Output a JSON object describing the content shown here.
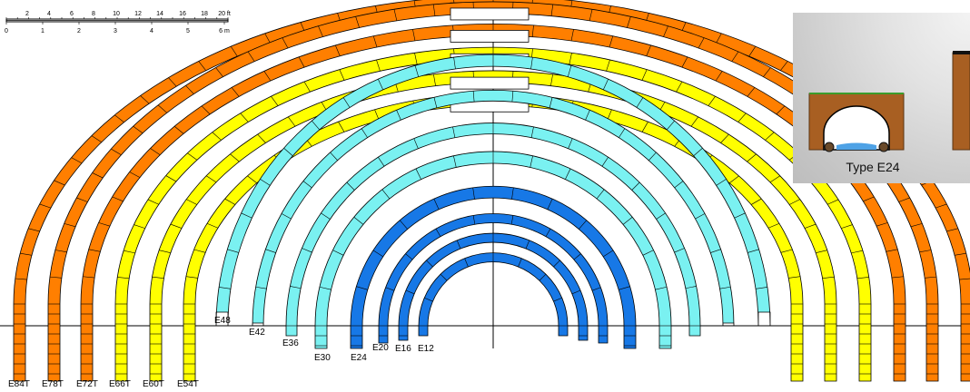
{
  "scale_bar": {
    "feet_ticks": [
      "2",
      "4",
      "6",
      "8",
      "10",
      "12",
      "14",
      "16",
      "18",
      "20 ft"
    ],
    "meter_ticks": [
      "0",
      "1",
      "2",
      "3",
      "4",
      "5",
      "6 m"
    ]
  },
  "labels": {
    "E12": "E12",
    "E16": "E16",
    "E20": "E20",
    "E24": "E24",
    "E30": "E30",
    "E36": "E36",
    "E42": "E42",
    "E48": "E48",
    "E54T": "E54T",
    "E60T": "E60T",
    "E66T": "E66T",
    "E72T": "E72T",
    "E78T": "E78T",
    "E84T": "E84T"
  },
  "inset": {
    "caption": "Type E24"
  },
  "colors": {
    "blue": "#1778e6",
    "cyan": "#7af1f1",
    "yellow": "#ffff00",
    "orange": "#ff7f00",
    "soil": "#a85f22",
    "grass": "#3b9c2c",
    "water": "#4ea2e6",
    "outline": "#000000"
  },
  "sections": [
    {
      "name": "E12",
      "color": "blue"
    },
    {
      "name": "E16",
      "color": "blue"
    },
    {
      "name": "E20",
      "color": "blue"
    },
    {
      "name": "E24",
      "color": "blue"
    },
    {
      "name": "E30",
      "color": "cyan"
    },
    {
      "name": "E36",
      "color": "cyan"
    },
    {
      "name": "E42",
      "color": "cyan"
    },
    {
      "name": "E48",
      "color": "cyan"
    },
    {
      "name": "E54T",
      "color": "yellow"
    },
    {
      "name": "E60T",
      "color": "yellow"
    },
    {
      "name": "E66T",
      "color": "yellow"
    },
    {
      "name": "E72T",
      "color": "orange"
    },
    {
      "name": "E78T",
      "color": "orange"
    },
    {
      "name": "E84T",
      "color": "orange"
    }
  ]
}
